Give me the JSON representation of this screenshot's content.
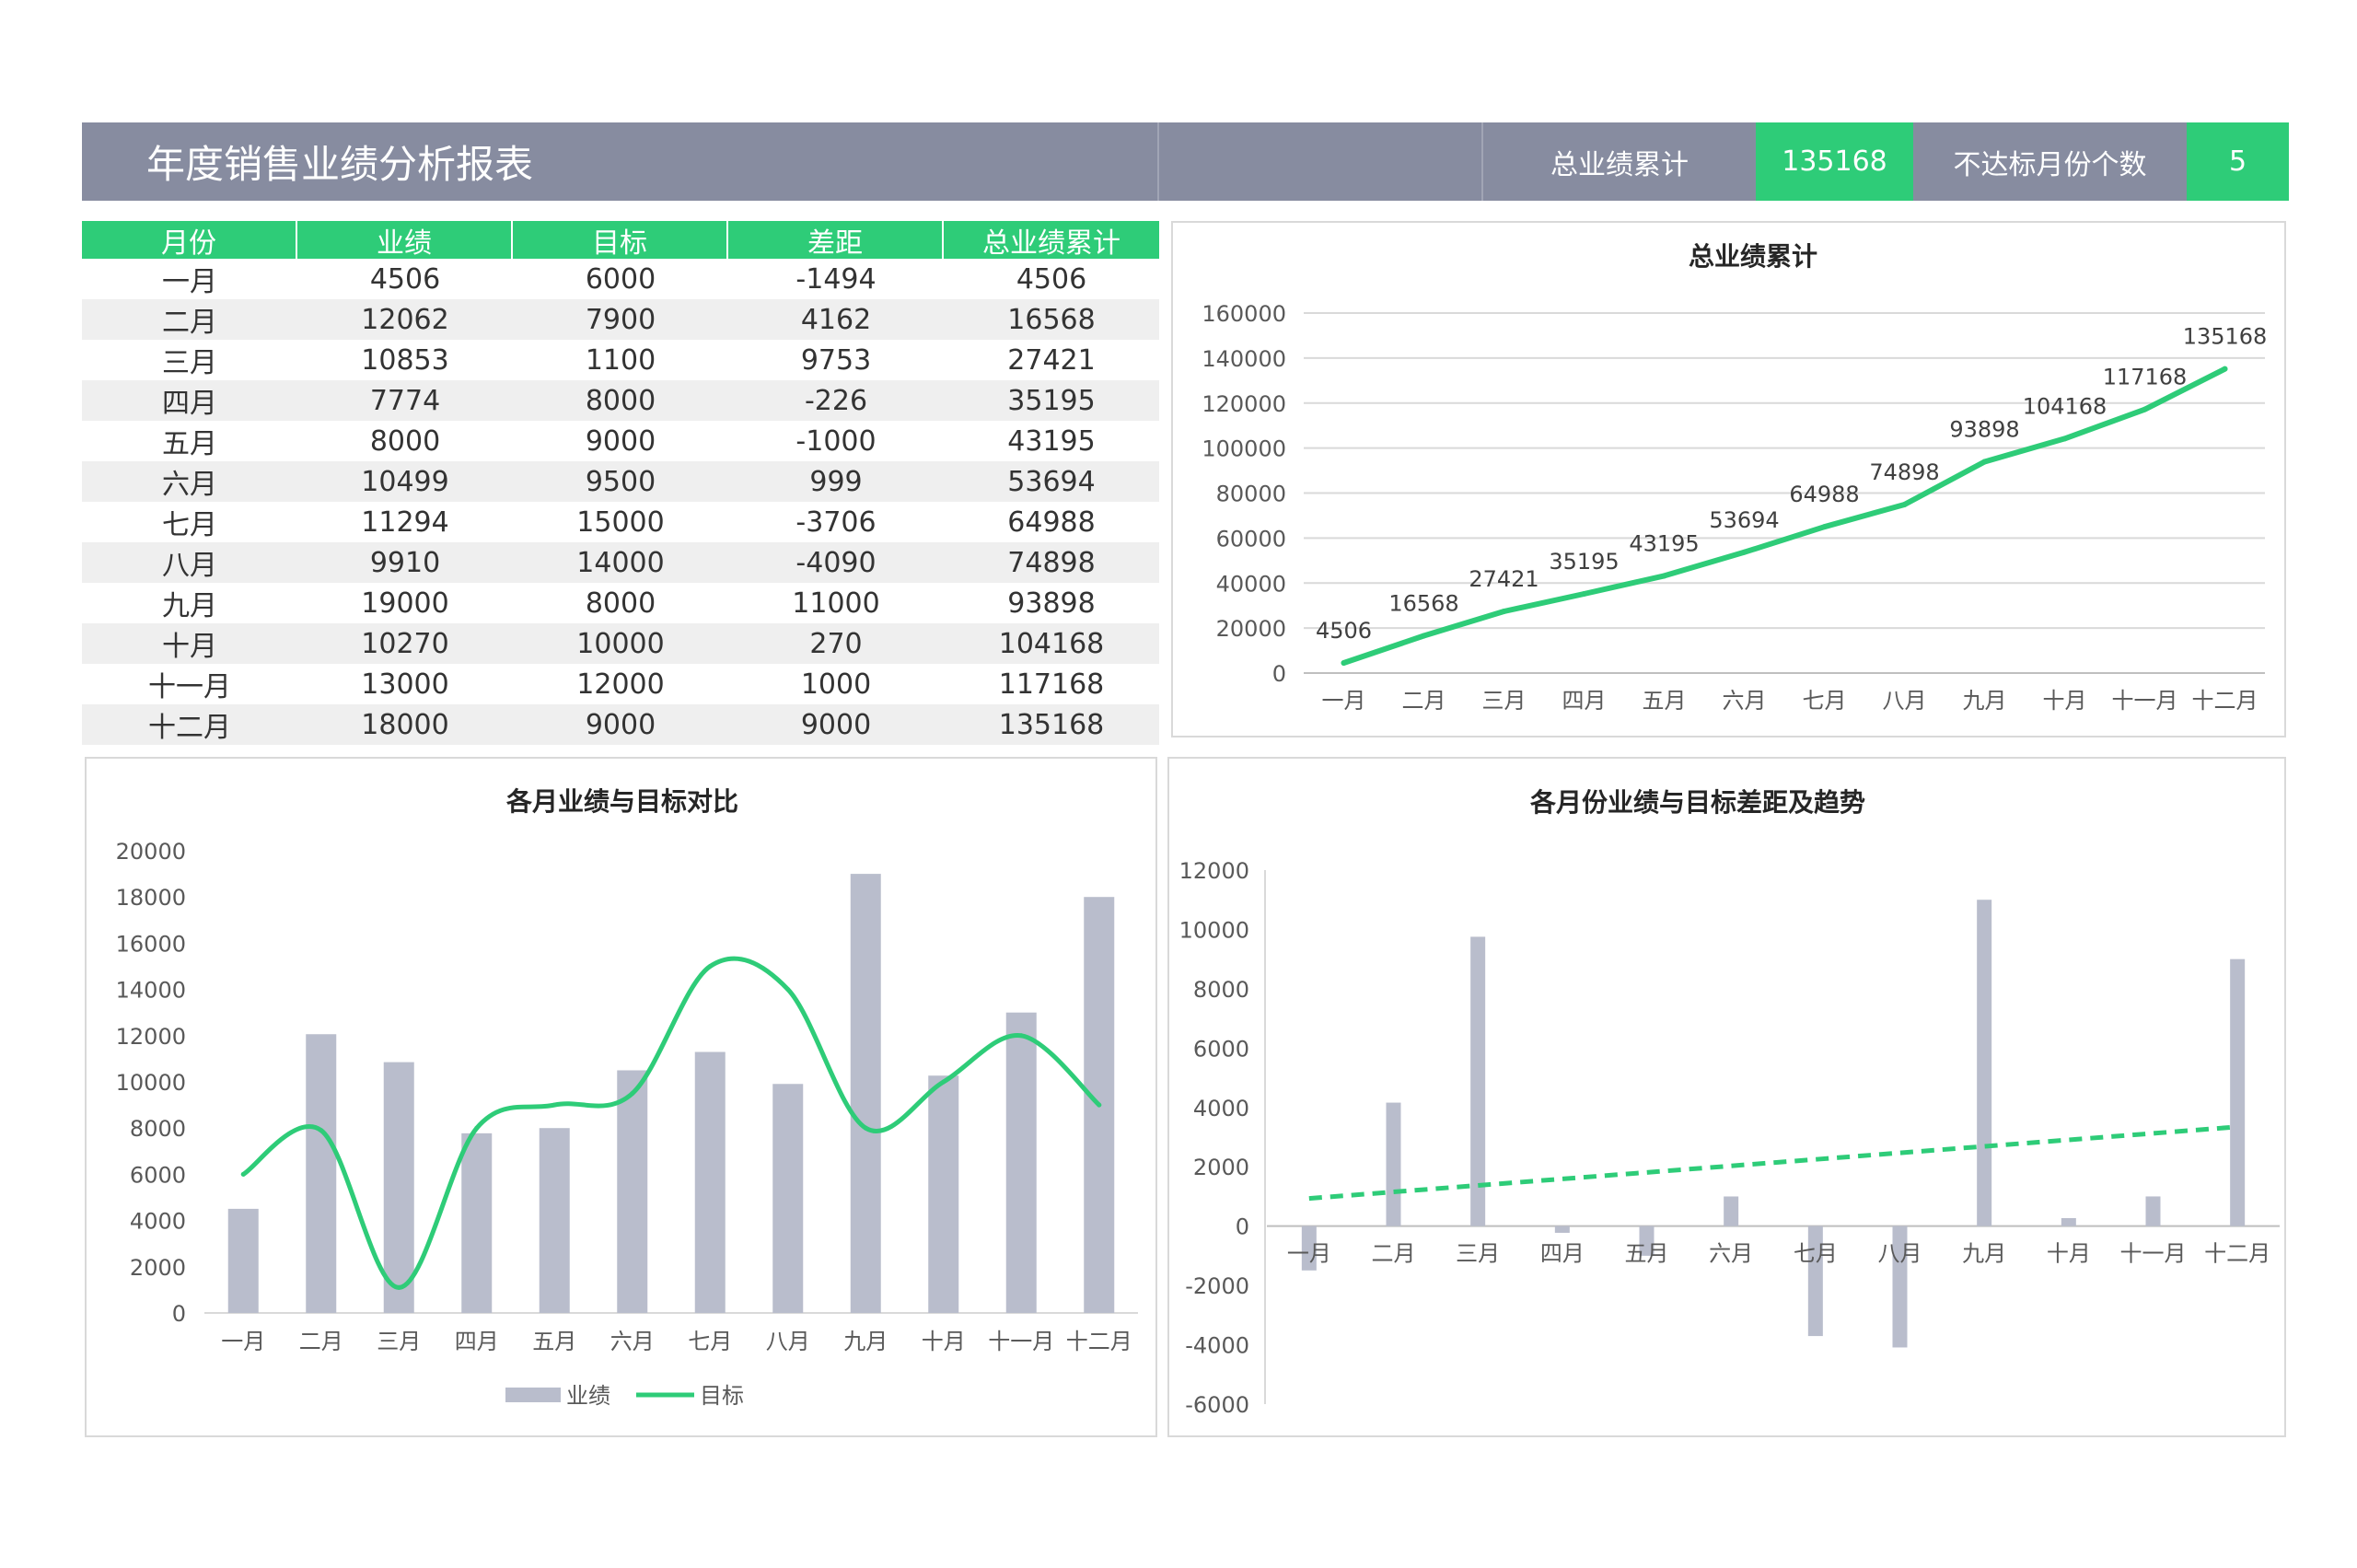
{
  "colors": {
    "accent": "#2ecc78",
    "header": "#878ca0",
    "stripe": "#efefef",
    "bar": "#b9bdcc",
    "grid": "#d9d9d9"
  },
  "header": {
    "title": "年度销售业绩分析报表",
    "total_label": "总业绩累计",
    "total_value": "135168",
    "below_target_label": "不达标月份个数",
    "below_target_value": "5"
  },
  "table": {
    "columns": [
      "月份",
      "业绩",
      "目标",
      "差距",
      "总业绩累计"
    ],
    "rows": [
      [
        "一月",
        "4506",
        "6000",
        "-1494",
        "4506"
      ],
      [
        "二月",
        "12062",
        "7900",
        "4162",
        "16568"
      ],
      [
        "三月",
        "10853",
        "1100",
        "9753",
        "27421"
      ],
      [
        "四月",
        "7774",
        "8000",
        "-226",
        "35195"
      ],
      [
        "五月",
        "8000",
        "9000",
        "-1000",
        "43195"
      ],
      [
        "六月",
        "10499",
        "9500",
        "999",
        "53694"
      ],
      [
        "七月",
        "11294",
        "15000",
        "-3706",
        "64988"
      ],
      [
        "八月",
        "9910",
        "14000",
        "-4090",
        "74898"
      ],
      [
        "九月",
        "19000",
        "8000",
        "11000",
        "93898"
      ],
      [
        "十月",
        "10270",
        "10000",
        "270",
        "104168"
      ],
      [
        "十一月",
        "13000",
        "12000",
        "1000",
        "117168"
      ],
      [
        "十二月",
        "18000",
        "9000",
        "9000",
        "135168"
      ]
    ]
  },
  "chart_data": [
    {
      "type": "line",
      "title": "总业绩累计",
      "categories": [
        "一月",
        "二月",
        "三月",
        "四月",
        "五月",
        "六月",
        "七月",
        "八月",
        "九月",
        "十月",
        "十一月",
        "十二月"
      ],
      "series": [
        {
          "values": [
            4506,
            16568,
            27421,
            35195,
            43195,
            53694,
            64988,
            74898,
            93898,
            104168,
            117168,
            135168
          ]
        }
      ],
      "ylim": [
        0,
        160000
      ],
      "yticks": [
        0,
        20000,
        40000,
        60000,
        80000,
        100000,
        120000,
        140000,
        160000
      ],
      "data_labels": true,
      "grid": true
    },
    {
      "type": "bar",
      "title": "各月业绩与目标对比",
      "categories": [
        "一月",
        "二月",
        "三月",
        "四月",
        "五月",
        "六月",
        "七月",
        "八月",
        "九月",
        "十月",
        "十一月",
        "十二月"
      ],
      "series": [
        {
          "name": "业绩",
          "type": "bar",
          "values": [
            4506,
            12062,
            10853,
            7774,
            8000,
            10499,
            11294,
            9910,
            19000,
            10270,
            13000,
            18000
          ]
        },
        {
          "name": "目标",
          "type": "line",
          "smooth": true,
          "values": [
            6000,
            7900,
            1100,
            8000,
            9000,
            9500,
            15000,
            14000,
            8000,
            10000,
            12000,
            9000
          ]
        }
      ],
      "ylim": [
        0,
        20000
      ],
      "yticks": [
        0,
        2000,
        4000,
        6000,
        8000,
        10000,
        12000,
        14000,
        16000,
        18000,
        20000
      ],
      "grid": false,
      "legend": "bottom"
    },
    {
      "type": "bar",
      "title": "各月份业绩与目标差距及趋势",
      "categories": [
        "一月",
        "二月",
        "三月",
        "四月",
        "五月",
        "六月",
        "七月",
        "八月",
        "九月",
        "十月",
        "十一月",
        "十二月"
      ],
      "series": [
        {
          "type": "bar",
          "values": [
            -1494,
            4162,
            9753,
            -226,
            -1000,
            999,
            -3706,
            -4090,
            11000,
            270,
            1000,
            9000
          ]
        }
      ],
      "trendline": "linear",
      "ylim": [
        -6000,
        12000
      ],
      "yticks": [
        -6000,
        -4000,
        -2000,
        0,
        2000,
        4000,
        6000,
        8000,
        10000,
        12000
      ],
      "grid": false
    }
  ]
}
